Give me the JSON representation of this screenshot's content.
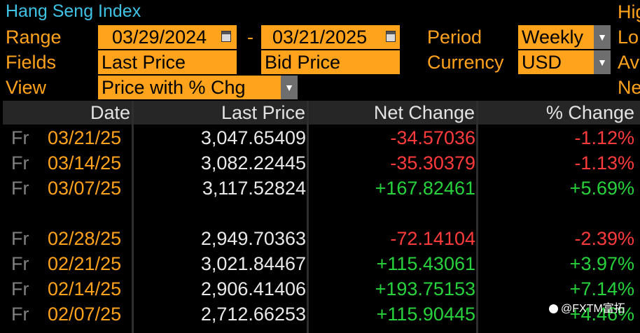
{
  "header": {
    "title": "Hang Seng Index",
    "right_labels": [
      "Hig",
      "Lo",
      "Av",
      "Ne"
    ]
  },
  "controls": {
    "range_label": "Range",
    "start_date": "03/29/2024",
    "dash": "-",
    "end_date": "03/21/2025",
    "period_label": "Period",
    "period_value": "Weekly",
    "fields_label": "Fields",
    "field1": "Last Price",
    "field2": "Bid Price",
    "currency_label": "Currency",
    "currency_value": "USD",
    "view_label": "View",
    "view_value": "Price with % Chg"
  },
  "table": {
    "columns": [
      "Date",
      "Last Price",
      "Net Change",
      "% Change"
    ],
    "rows": [
      {
        "day": "Fr",
        "date": "03/21/25",
        "last": "3,047.65409",
        "net": "-34.57036",
        "pct": "-1.12%",
        "dir": "neg"
      },
      {
        "day": "Fr",
        "date": "03/14/25",
        "last": "3,082.22445",
        "net": "-35.30379",
        "pct": "-1.13%",
        "dir": "neg"
      },
      {
        "day": "Fr",
        "date": "03/07/25",
        "last": "3,117.52824",
        "net": "+167.82461",
        "pct": "+5.69%",
        "dir": "pos"
      },
      {
        "day": "Fr",
        "date": "02/28/25",
        "last": "2,949.70363",
        "net": "-72.14104",
        "pct": "-2.39%",
        "dir": "neg"
      },
      {
        "day": "Fr",
        "date": "02/21/25",
        "last": "3,021.84467",
        "net": "+115.43061",
        "pct": "+3.97%",
        "dir": "pos"
      },
      {
        "day": "Fr",
        "date": "02/14/25",
        "last": "2,906.41406",
        "net": "+193.75153",
        "pct": "+7.14%",
        "dir": "pos"
      },
      {
        "day": "Fr",
        "date": "02/07/25",
        "last": "2,712.66253",
        "net": "+115.90445",
        "pct": "+4.46%",
        "dir": "pos"
      }
    ]
  },
  "watermark": "@FXTM富拓",
  "colors": {
    "accent": "#ffa21c",
    "title": "#3fc3e4",
    "negative": "#ff3b3b",
    "positive": "#27d23c"
  }
}
